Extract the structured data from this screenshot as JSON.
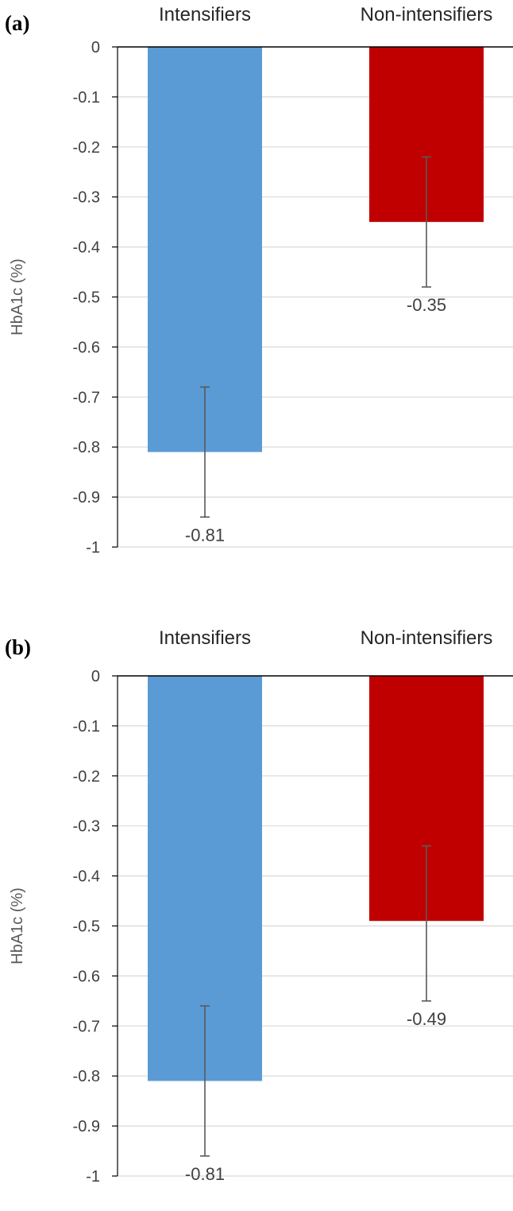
{
  "chart_data": [
    {
      "type": "bar",
      "panel_label": "(a)",
      "categories": [
        "Intensifiers",
        "Non-intensifiers"
      ],
      "values": [
        -0.81,
        -0.35
      ],
      "value_labels": [
        "-0.81",
        "-0.35"
      ],
      "error_bars": [
        [
          -0.94,
          -0.68
        ],
        [
          -0.48,
          -0.22
        ]
      ],
      "colors": [
        "#5b9bd5",
        "#c00000"
      ],
      "ylabel": "HbA1c (%)",
      "ylim": [
        -1,
        0
      ],
      "yticks": [
        0,
        -0.1,
        -0.2,
        -0.3,
        -0.4,
        -0.5,
        -0.6,
        -0.7,
        -0.8,
        -0.9,
        -1
      ],
      "ytick_labels": [
        "0",
        "-0.1",
        "-0.2",
        "-0.3",
        "-0.4",
        "-0.5",
        "-0.6",
        "-0.7",
        "-0.8",
        "-0.9",
        "-1"
      ],
      "grid": true,
      "category_labels_position": "top"
    },
    {
      "type": "bar",
      "panel_label": "(b)",
      "categories": [
        "Intensifiers",
        "Non-intensifiers"
      ],
      "values": [
        -0.81,
        -0.49
      ],
      "value_labels": [
        "-0.81",
        "-0.49"
      ],
      "error_bars": [
        [
          -0.96,
          -0.66
        ],
        [
          -0.65,
          -0.34
        ]
      ],
      "colors": [
        "#5b9bd5",
        "#c00000"
      ],
      "ylabel": "HbA1c (%)",
      "ylim": [
        -1,
        0
      ],
      "yticks": [
        0,
        -0.1,
        -0.2,
        -0.3,
        -0.4,
        -0.5,
        -0.6,
        -0.7,
        -0.8,
        -0.9,
        -1
      ],
      "ytick_labels": [
        "0",
        "-0.1",
        "-0.2",
        "-0.3",
        "-0.4",
        "-0.5",
        "-0.6",
        "-0.7",
        "-0.8",
        "-0.9",
        "-1"
      ],
      "grid": true,
      "category_labels_position": "top"
    }
  ]
}
